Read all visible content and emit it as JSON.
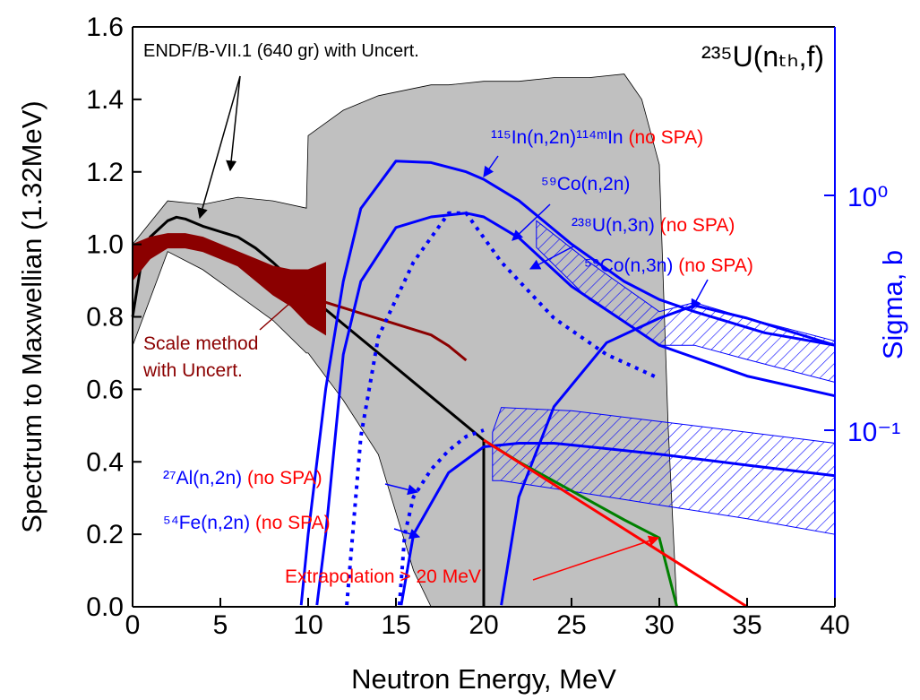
{
  "chart_data": {
    "type": "line",
    "x_label": "Neutron Energy,  MeV",
    "y_label": "Spectrum to Maxwellian (1.32MeV)",
    "y2_label": "Sigma,  b",
    "y2_color": "#0000ff",
    "xlim": [
      0,
      40
    ],
    "xticks": [
      0,
      5,
      10,
      15,
      20,
      25,
      30,
      35,
      40
    ],
    "ylim": [
      0,
      1.6
    ],
    "yticks": [
      {
        "value": 0,
        "label": "0.0"
      },
      0.2,
      0.4,
      0.6,
      0.8,
      {
        "value": 1,
        "label": "1.0"
      },
      1.2,
      1.4,
      1.6
    ],
    "y2_log": true,
    "y2lim": [
      0.0177,
      5.22
    ],
    "y2ticks": [
      {
        "value": 0.1,
        "label": "10⁻¹"
      },
      {
        "value": 1,
        "label": "10⁰"
      }
    ],
    "series": [
      {
        "style": "band",
        "color": "#c0c0c0",
        "x": [
          0,
          2,
          4,
          6,
          8,
          9.9,
          10,
          12,
          14,
          16,
          17,
          18,
          20,
          22,
          24,
          26,
          28,
          29,
          30,
          30.5,
          31
        ],
        "values": [
          1.0,
          1.12,
          1.11,
          1.13,
          1.12,
          1.1,
          1.3,
          1.37,
          1.41,
          1.43,
          1.44,
          1.44,
          1.45,
          1.45,
          1.46,
          1.46,
          1.47,
          1.4,
          1.22,
          0.5,
          0
        ],
        "lower": [
          0.72,
          0.98,
          0.93,
          0.86,
          0.79,
          0.7,
          0.7,
          0.57,
          0.42,
          0.1,
          0,
          0,
          0,
          0,
          0,
          0,
          0,
          0,
          0,
          0,
          0
        ]
      },
      {
        "style": "line",
        "color": "#000000",
        "x": [
          0,
          0.5,
          1,
          2,
          2.5,
          3,
          4,
          5,
          6,
          7,
          8,
          10,
          12,
          14,
          16,
          18,
          20,
          20
        ],
        "values": [
          0.8,
          0.95,
          1.02,
          1.065,
          1.075,
          1.07,
          1.05,
          1.035,
          1.02,
          0.99,
          0.95,
          0.86,
          0.78,
          0.7,
          0.62,
          0.54,
          0.46,
          0
        ]
      },
      {
        "style": "band",
        "color": "#8b0000",
        "x": [
          0,
          1,
          2,
          3,
          4,
          5,
          6,
          7,
          8,
          9,
          10,
          11
        ],
        "values": [
          1.0,
          1.02,
          1.03,
          1.03,
          1.02,
          1.0,
          0.98,
          0.96,
          0.94,
          0.93,
          0.93,
          0.95
        ],
        "lower": [
          0.9,
          0.96,
          0.99,
          0.99,
          0.98,
          0.96,
          0.94,
          0.9,
          0.86,
          0.83,
          0.78,
          0.75
        ]
      },
      {
        "style": "line",
        "color": "#8b0000",
        "x": [
          11,
          13,
          15,
          17,
          18,
          19
        ],
        "values": [
          0.84,
          0.81,
          0.78,
          0.75,
          0.72,
          0.68
        ]
      },
      {
        "style": "hatch",
        "axis": "y2",
        "color": "#0000ff",
        "x": [
          20.5,
          21,
          25,
          30,
          35,
          40
        ],
        "values": [
          0.098,
          0.125,
          0.121,
          0.109,
          0.098,
          0.088
        ],
        "lower": [
          0.061,
          0.061,
          0.055,
          0.048,
          0.042,
          0.036
        ]
      },
      {
        "style": "hatch",
        "axis": "y2",
        "color": "#0000ff",
        "x": [
          23,
          26,
          30,
          32,
          35,
          40
        ],
        "values": [
          0.78,
          0.52,
          0.32,
          0.35,
          0.3,
          0.24
        ],
        "lower": [
          0.6,
          0.36,
          0.23,
          0.23,
          0.2,
          0.16
        ]
      },
      {
        "style": "line",
        "axis": "y2",
        "color": "#0000ff",
        "x": [
          9.6,
          10,
          11,
          12,
          13,
          15,
          17,
          19,
          20,
          22,
          25,
          28,
          30,
          32,
          36,
          40
        ],
        "values": [
          0.018,
          0.036,
          0.15,
          0.43,
          0.88,
          1.4,
          1.38,
          1.26,
          1.17,
          0.95,
          0.62,
          0.43,
          0.36,
          0.32,
          0.26,
          0.23
        ]
      },
      {
        "style": "line",
        "axis": "y2",
        "color": "#0000ff",
        "x": [
          10.5,
          11,
          12,
          13,
          15,
          17,
          19,
          20,
          22,
          25,
          30,
          35,
          40
        ],
        "values": [
          0.018,
          0.036,
          0.21,
          0.43,
          0.73,
          0.81,
          0.84,
          0.81,
          0.66,
          0.41,
          0.23,
          0.17,
          0.14
        ]
      },
      {
        "style": "dotted",
        "axis": "y2",
        "color": "#0000ff",
        "x": [
          12.2,
          13,
          14,
          16,
          18,
          19,
          21,
          24,
          27,
          30
        ],
        "values": [
          0.018,
          0.094,
          0.25,
          0.52,
          0.84,
          0.84,
          0.52,
          0.3,
          0.21,
          0.166
        ]
      },
      {
        "style": "line",
        "axis": "y2",
        "color": "#0000ff",
        "x": [
          21,
          22,
          24,
          27,
          30,
          32,
          35,
          40
        ],
        "values": [
          0.018,
          0.052,
          0.126,
          0.236,
          0.3,
          0.34,
          0.3,
          0.23
        ]
      },
      {
        "style": "dotted",
        "axis": "y2",
        "color": "#0000ff",
        "x": [
          15.2,
          15.5,
          16,
          17,
          18,
          19,
          20
        ],
        "values": [
          0.018,
          0.036,
          0.052,
          0.068,
          0.082,
          0.094,
          0.1
        ]
      },
      {
        "style": "line",
        "axis": "y2",
        "color": "#0000ff",
        "x": [
          15.3,
          16,
          18,
          20,
          22,
          24,
          26,
          30,
          35,
          40
        ],
        "values": [
          0.018,
          0.036,
          0.066,
          0.085,
          0.088,
          0.088,
          0.085,
          0.079,
          0.071,
          0.064
        ]
      },
      {
        "style": "line",
        "color": "#008000",
        "x": [
          20,
          22,
          25,
          28,
          30,
          31
        ],
        "values": [
          0.46,
          0.4,
          0.32,
          0.24,
          0.19,
          0
        ]
      },
      {
        "style": "line",
        "color": "#ff0000",
        "x": [
          20,
          35
        ],
        "values": [
          0.46,
          0
        ]
      }
    ],
    "annotations": [
      {
        "parts": [
          {
            "text": "ENDF/B-VII.1 (640 gr) with Uncert.",
            "color": "#000000"
          }
        ]
      },
      {
        "parts": [
          {
            "text": "²³⁵U(nₜₕ,f)",
            "color": "#000000"
          }
        ]
      },
      {
        "parts": [
          {
            "text": "¹¹⁵In(n,2n)¹¹⁴ᵐIn",
            "color": "#0000ff"
          },
          {
            "text": " (no SPA)",
            "color": "#ff0000"
          }
        ]
      },
      {
        "parts": [
          {
            "text": "⁵⁹Co(n,2n)",
            "color": "#0000ff"
          }
        ]
      },
      {
        "parts": [
          {
            "text": "²³⁸U(n,3n)",
            "color": "#0000ff"
          },
          {
            "text": " (no SPA)",
            "color": "#ff0000"
          }
        ]
      },
      {
        "parts": [
          {
            "text": "⁵⁹Co(n,3n)",
            "color": "#0000ff"
          },
          {
            "text": " (no SPA)",
            "color": "#ff0000"
          }
        ]
      },
      {
        "parts": [
          {
            "text": "²⁷Al(n,2n)",
            "color": "#0000ff"
          },
          {
            "text": " (no SPA)",
            "color": "#ff0000"
          }
        ]
      },
      {
        "parts": [
          {
            "text": "⁵⁴Fe(n,2n)",
            "color": "#0000ff"
          },
          {
            "text": " (no SPA)",
            "color": "#ff0000"
          }
        ]
      },
      {
        "parts": [
          {
            "text": "Scale method",
            "color": "#8b0000"
          }
        ]
      },
      {
        "parts": [
          {
            "text": "with Uncert.",
            "color": "#8b0000"
          }
        ]
      },
      {
        "parts": [
          {
            "text": "Extrapolation > 20 MeV",
            "color": "#ff0000"
          }
        ]
      }
    ]
  }
}
